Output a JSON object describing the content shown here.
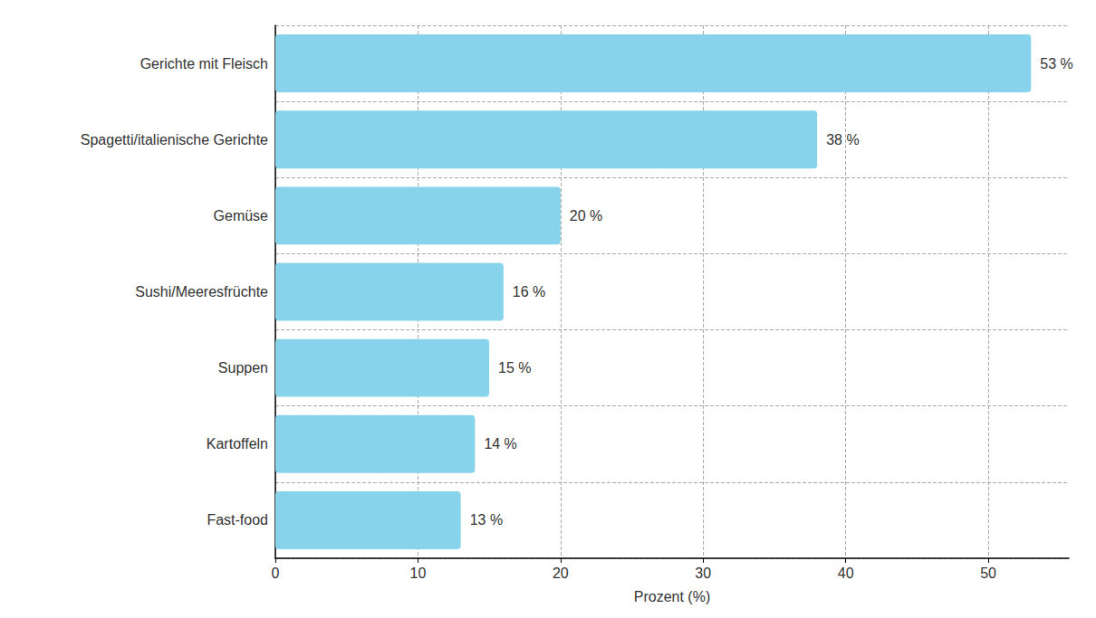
{
  "chart_data": {
    "type": "bar",
    "orientation": "horizontal",
    "categories": [
      "Gerichte mit Fleisch",
      "Spagetti/italienische Gerichte",
      "Gemüse",
      "Sushi/Meeresfrüchte",
      "Suppen",
      "Kartoffeln",
      "Fast-food"
    ],
    "values": [
      53,
      38,
      20,
      16,
      15,
      14,
      13
    ],
    "value_labels": [
      "53 %",
      "38 %",
      "20 %",
      "16 %",
      "15 %",
      "14 %",
      "13 %"
    ],
    "data_labels": true,
    "color": "#87d3ec",
    "x_label": "Prozent (%)",
    "xlim": [
      0,
      55.65
    ],
    "xticks": [
      0,
      10,
      20,
      30,
      40,
      50
    ],
    "grid": true
  }
}
